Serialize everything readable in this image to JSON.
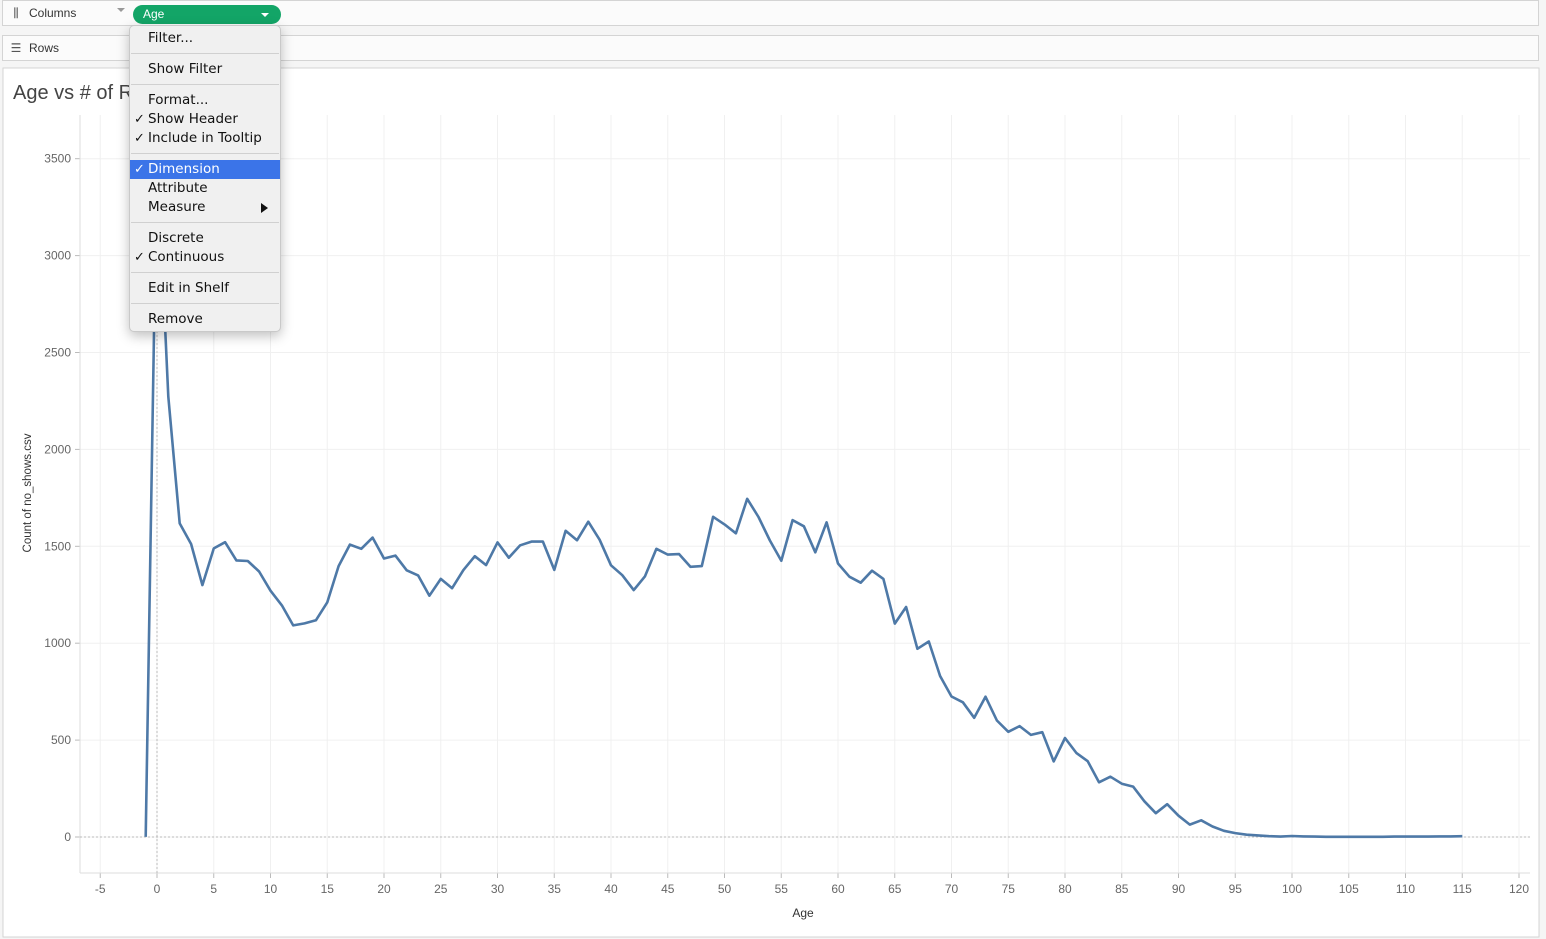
{
  "shelves": {
    "columns_label": "Columns",
    "columns_icon": "columns-icon",
    "rows_label": "Rows",
    "rows_icon": "rows-icon",
    "pill_label": "Age",
    "pill_color": "#13a567"
  },
  "title": "Age vs # of R",
  "menu": {
    "items": [
      {
        "label": "Filter...",
        "checked": false
      },
      {
        "label": "Show Filter",
        "checked": false
      },
      {
        "label": "Format...",
        "checked": false
      },
      {
        "label": "Show Header",
        "checked": true
      },
      {
        "label": "Include in Tooltip",
        "checked": true
      },
      {
        "label": "Dimension",
        "checked": true,
        "highlighted": true
      },
      {
        "label": "Attribute",
        "checked": false
      },
      {
        "label": "Measure",
        "checked": false,
        "submenu": true
      },
      {
        "label": "Discrete",
        "checked": false
      },
      {
        "label": "Continuous",
        "checked": true
      },
      {
        "label": "Edit in Shelf",
        "checked": false
      },
      {
        "label": "Remove",
        "checked": false
      }
    ],
    "check_glyph": "✓",
    "highlight_color": "#3b74e8"
  },
  "chart_data": {
    "type": "line",
    "title": "Age vs # of R",
    "xlabel": "Age",
    "ylabel": "Count of no_shows.csv",
    "xlim": [
      -7,
      121
    ],
    "ylim": [
      -200,
      3750
    ],
    "x_ticks": [
      -5,
      0,
      5,
      10,
      15,
      20,
      25,
      30,
      35,
      40,
      45,
      50,
      55,
      60,
      65,
      70,
      75,
      80,
      85,
      90,
      95,
      100,
      105,
      110,
      115,
      120
    ],
    "y_ticks": [
      0,
      500,
      1000,
      1500,
      2000,
      2500,
      3000,
      3500
    ],
    "grid": true,
    "line_color": "#4e79a7",
    "x": [
      -1,
      0,
      1,
      2,
      3,
      4,
      5,
      6,
      7,
      8,
      9,
      10,
      11,
      12,
      13,
      14,
      15,
      16,
      17,
      18,
      19,
      20,
      21,
      22,
      23,
      24,
      25,
      26,
      27,
      28,
      29,
      30,
      31,
      32,
      33,
      34,
      35,
      36,
      37,
      38,
      39,
      40,
      41,
      42,
      43,
      44,
      45,
      46,
      47,
      48,
      49,
      50,
      51,
      52,
      53,
      54,
      55,
      56,
      57,
      58,
      59,
      60,
      61,
      62,
      63,
      64,
      65,
      66,
      67,
      68,
      69,
      70,
      71,
      72,
      73,
      74,
      75,
      76,
      77,
      78,
      79,
      80,
      81,
      82,
      83,
      84,
      85,
      86,
      87,
      88,
      89,
      90,
      91,
      92,
      93,
      94,
      95,
      96,
      97,
      98,
      99,
      100,
      101,
      102,
      103,
      104,
      105,
      106,
      107,
      108,
      109,
      110,
      111,
      112,
      113,
      114,
      115
    ],
    "y": [
      1,
      3539,
      2273,
      1618,
      1512,
      1300,
      1489,
      1521,
      1427,
      1424,
      1370,
      1271,
      1195,
      1092,
      1102,
      1118,
      1211,
      1398,
      1509,
      1487,
      1545,
      1437,
      1452,
      1376,
      1350,
      1245,
      1332,
      1284,
      1377,
      1449,
      1403,
      1520,
      1441,
      1505,
      1524,
      1524,
      1378,
      1580,
      1531,
      1627,
      1534,
      1402,
      1351,
      1274,
      1345,
      1487,
      1457,
      1460,
      1394,
      1398,
      1652,
      1613,
      1567,
      1745,
      1651,
      1530,
      1425,
      1635,
      1603,
      1469,
      1624,
      1411,
      1343,
      1312,
      1374,
      1332,
      1101,
      1187,
      971,
      1009,
      831,
      725,
      695,
      615,
      724,
      601,
      543,
      572,
      527,
      541,
      390,
      511,
      434,
      391,
      282,
      311,
      275,
      260,
      184,
      123,
      169,
      110,
      64,
      86,
      54,
      32,
      20,
      12,
      8,
      4,
      2,
      5,
      3,
      2,
      1,
      1,
      1,
      1,
      1,
      1,
      2,
      2,
      2,
      2,
      3,
      3,
      4
    ]
  }
}
